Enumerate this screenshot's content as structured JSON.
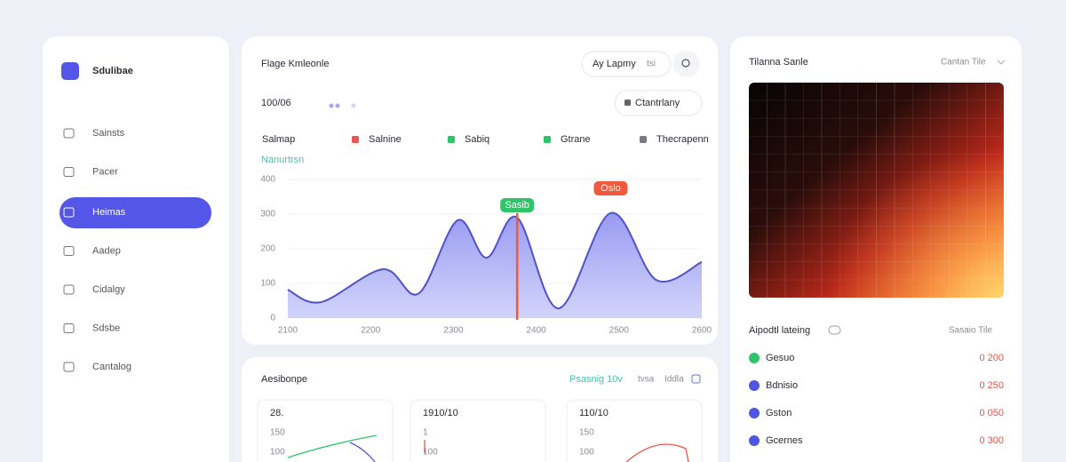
{
  "sidebar": {
    "brand": "Sdulibae",
    "nav": [
      "Sainsts",
      "Pacer",
      "Heimas",
      "Aadep",
      "Cidalgy",
      "Sdsbe",
      "Cantalog"
    ],
    "active": 2
  },
  "main": {
    "title": "Flage Kmleonle",
    "filter": "Ay Lapmy",
    "filter_hint": "tsi",
    "total": "100/06",
    "button": "Ctantrlany",
    "legend_label": "Salmap",
    "legend": [
      {
        "name": "Salnine",
        "color": "#e8574a"
      },
      {
        "name": "Sabiq",
        "color": "#2fc46a"
      },
      {
        "name": "Gtrane",
        "color": "#2fc46a"
      },
      {
        "name": "Thecrapenn",
        "color": "#7a7c85"
      }
    ]
  },
  "chart_data": {
    "type": "area",
    "subtitle": "Nanurtrsn",
    "x": [
      2100,
      2140,
      2215,
      2258,
      2305,
      2340,
      2377,
      2427,
      2490,
      2545,
      2600
    ],
    "values": [
      82,
      46,
      141,
      71,
      282,
      174,
      290,
      28,
      303,
      110,
      162
    ],
    "color": "#4f52c9",
    "xlim": [
      2100,
      2600
    ],
    "xticks": [
      2100,
      2200,
      2300,
      2400,
      2500,
      2600
    ],
    "ylim": [
      0,
      400
    ],
    "yticks": [
      0,
      100,
      200,
      300,
      400
    ],
    "grid": true,
    "annotations": [
      {
        "x": 2377,
        "label": "Sasib",
        "color": "#2fc46a"
      },
      {
        "x": 2490,
        "label": "Oslo",
        "color": "#ef5a3c"
      }
    ],
    "marker_x": 2377
  },
  "activity": {
    "title": "Aesibonpe",
    "period": "Psasnig 10v",
    "tabs": [
      "tvsa",
      "Iddla"
    ],
    "cards": [
      {
        "value": "28.",
        "ticks": [
          "150",
          "100"
        ]
      },
      {
        "value": "1910/10",
        "ticks": [
          "1",
          "100"
        ]
      },
      {
        "value": "110/10",
        "ticks": [
          "150",
          "100"
        ]
      }
    ]
  },
  "heat": {
    "title": "Tilanna Sanle",
    "select": "Cantan Tile"
  },
  "list": {
    "title": "Aipodtl lateing",
    "select": "Sasaio Tile",
    "items": [
      {
        "name": "Gesuo",
        "value": "0 200",
        "color": "#2fc46a"
      },
      {
        "name": "Bdnisio",
        "value": "0 250",
        "color": "#5055e0"
      },
      {
        "name": "Gston",
        "value": "0 050",
        "color": "#5055e0"
      },
      {
        "name": "Gcernes",
        "value": "0 300",
        "color": "#5055e0"
      }
    ]
  }
}
